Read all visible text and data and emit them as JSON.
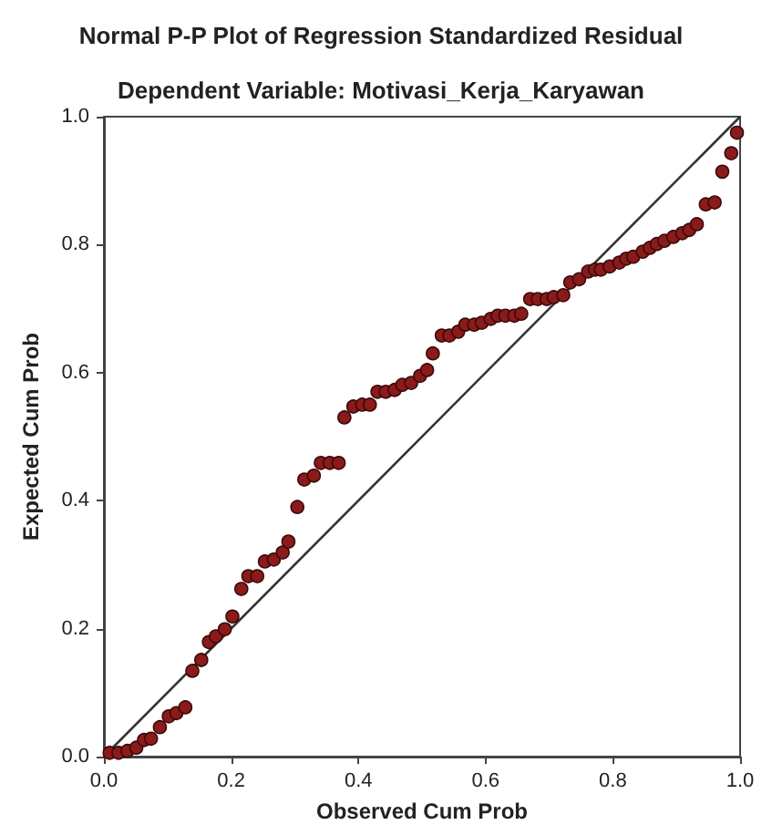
{
  "chart_data": {
    "type": "scatter",
    "title": "Normal P-P Plot of Regression Standardized Residual",
    "subtitle": "Dependent Variable: Motivasi_Kerja_Karyawan",
    "xlabel": "Observed Cum Prob",
    "ylabel": "Expected Cum Prob",
    "xlim": [
      0,
      1
    ],
    "ylim": [
      0,
      1
    ],
    "xticks": [
      {
        "value": 0,
        "label": "0.0"
      },
      0.2,
      0.4,
      0.6,
      0.8,
      {
        "value": 1,
        "label": "1.0"
      }
    ],
    "yticks": [
      {
        "value": 0,
        "label": "0.0"
      },
      0.2,
      0.4,
      0.6,
      0.8,
      {
        "value": 1,
        "label": "1.0"
      }
    ],
    "grid": false,
    "marker": "circle",
    "series": [
      {
        "type": "line",
        "color": "#333333",
        "line_style": "solid",
        "marker": "none",
        "x": [
          0,
          1
        ],
        "values": [
          0,
          1
        ]
      },
      {
        "color": "#8b1a1a",
        "x": [
          0.009,
          0.023,
          0.037,
          0.051,
          0.063,
          0.074,
          0.088,
          0.102,
          0.114,
          0.128,
          0.139,
          0.153,
          0.165,
          0.176,
          0.19,
          0.202,
          0.216,
          0.227,
          0.241,
          0.253,
          0.267,
          0.281,
          0.29,
          0.304,
          0.315,
          0.33,
          0.341,
          0.355,
          0.369,
          0.378,
          0.392,
          0.406,
          0.418,
          0.43,
          0.443,
          0.457,
          0.469,
          0.483,
          0.497,
          0.508,
          0.517,
          0.531,
          0.543,
          0.557,
          0.568,
          0.582,
          0.594,
          0.608,
          0.619,
          0.631,
          0.645,
          0.656,
          0.67,
          0.682,
          0.696,
          0.707,
          0.722,
          0.733,
          0.747,
          0.761,
          0.772,
          0.781,
          0.795,
          0.81,
          0.821,
          0.832,
          0.847,
          0.858,
          0.869,
          0.881,
          0.895,
          0.909,
          0.92,
          0.932,
          0.946,
          0.96,
          0.972,
          0.986,
          0.995
        ],
        "values": [
          0.006,
          0.006,
          0.009,
          0.014,
          0.026,
          0.028,
          0.046,
          0.063,
          0.068,
          0.077,
          0.134,
          0.151,
          0.179,
          0.188,
          0.199,
          0.219,
          0.262,
          0.282,
          0.282,
          0.305,
          0.308,
          0.319,
          0.336,
          0.39,
          0.433,
          0.439,
          0.459,
          0.459,
          0.459,
          0.53,
          0.547,
          0.55,
          0.55,
          0.57,
          0.57,
          0.573,
          0.581,
          0.584,
          0.595,
          0.604,
          0.63,
          0.658,
          0.658,
          0.664,
          0.675,
          0.675,
          0.678,
          0.684,
          0.689,
          0.689,
          0.689,
          0.692,
          0.715,
          0.715,
          0.715,
          0.718,
          0.721,
          0.741,
          0.746,
          0.758,
          0.761,
          0.761,
          0.766,
          0.772,
          0.778,
          0.781,
          0.789,
          0.795,
          0.801,
          0.806,
          0.812,
          0.818,
          0.823,
          0.832,
          0.863,
          0.866,
          0.914,
          0.943,
          0.975
        ]
      }
    ]
  }
}
